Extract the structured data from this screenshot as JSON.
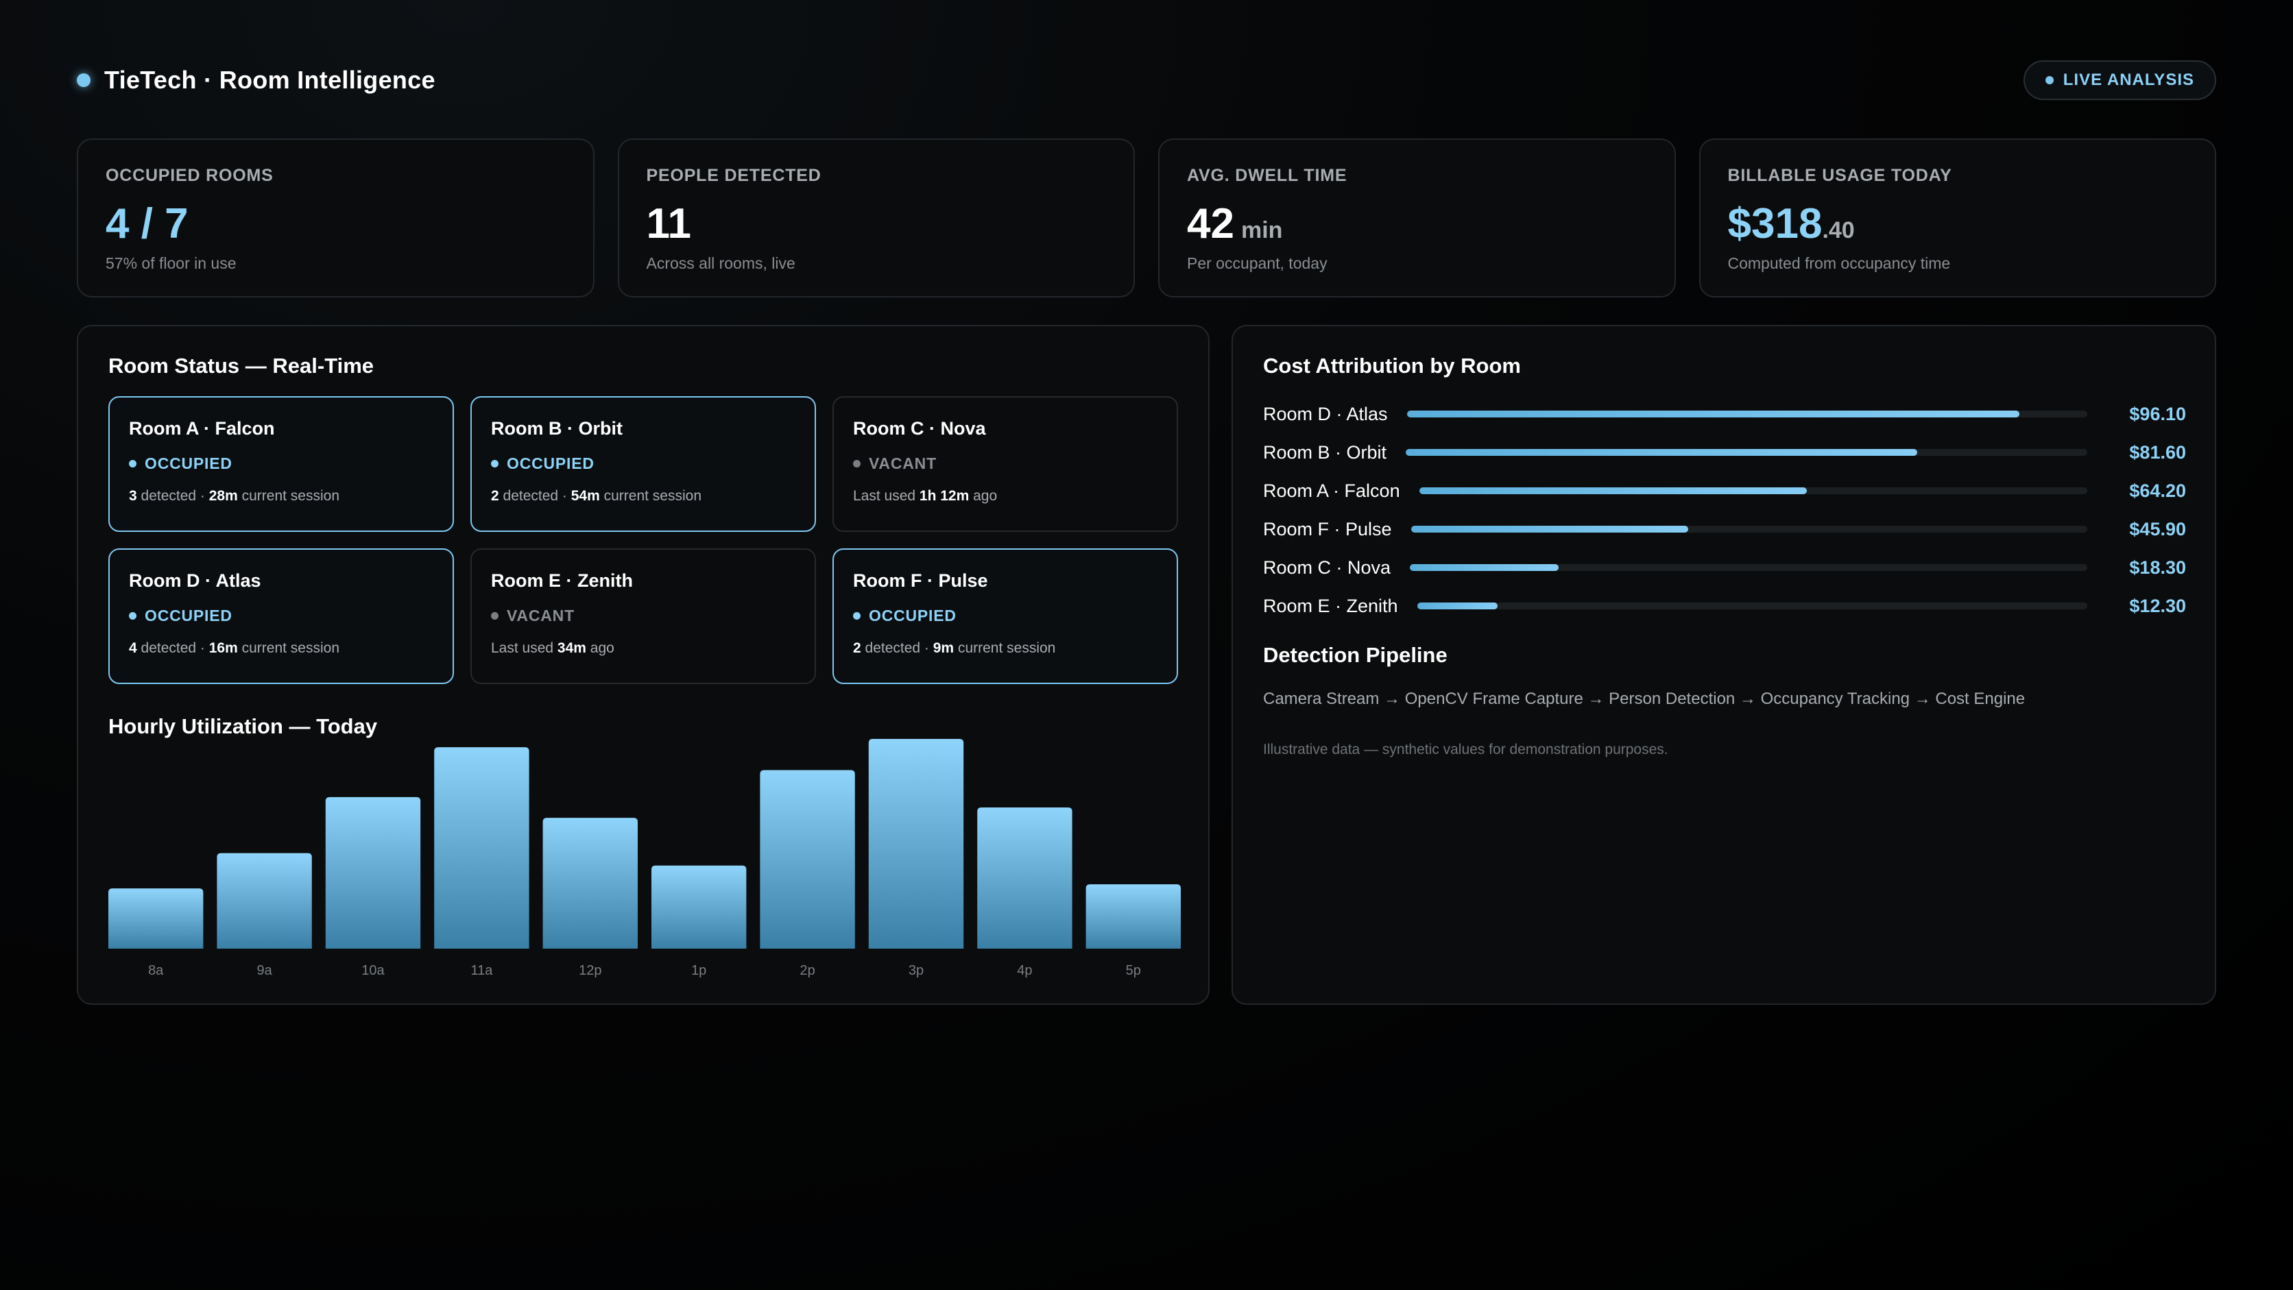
{
  "header": {
    "title": "TieTech · Room Intelligence",
    "live_label": "LIVE ANALYSIS"
  },
  "kpis": [
    {
      "label": "OCCUPIED ROOMS",
      "value": "4 / 7",
      "unit": "",
      "cents": "",
      "sub": "57% of floor in use"
    },
    {
      "label": "PEOPLE DETECTED",
      "value": "11",
      "unit": "",
      "cents": "",
      "sub": "Across all rooms, live"
    },
    {
      "label": "AVG. DWELL TIME",
      "value": "42",
      "unit": "min",
      "cents": "",
      "sub": "Per occupant, today"
    },
    {
      "label": "BILLABLE USAGE TODAY",
      "value": "$318",
      "unit": "",
      "cents": ".40",
      "sub": "Computed from occupancy time"
    }
  ],
  "room_status": {
    "title": "Room Status — Real-Time",
    "rooms": [
      {
        "name": "Room A · Falcon",
        "status": "OCCUPIED",
        "d1": "3",
        "t1": " detected · ",
        "d2": "28m",
        "t2": " current session"
      },
      {
        "name": "Room B · Orbit",
        "status": "OCCUPIED",
        "d1": "2",
        "t1": " detected · ",
        "d2": "54m",
        "t2": " current session"
      },
      {
        "name": "Room C · Nova",
        "status": "VACANT",
        "t0": "Last used ",
        "d1": "1h 12m",
        "t1": " ago"
      },
      {
        "name": "Room D · Atlas",
        "status": "OCCUPIED",
        "d1": "4",
        "t1": " detected · ",
        "d2": "16m",
        "t2": " current session"
      },
      {
        "name": "Room E · Zenith",
        "status": "VACANT",
        "t0": "Last used ",
        "d1": "34m",
        "t1": " ago"
      },
      {
        "name": "Room F · Pulse",
        "status": "OCCUPIED",
        "d1": "2",
        "t1": " detected · ",
        "d2": "9m",
        "t2": " current session"
      }
    ]
  },
  "hourly": {
    "title": "Hourly Utilization — Today"
  },
  "chart_data": {
    "type": "bar",
    "title": "Hourly Utilization — Today",
    "categories": [
      "8a",
      "9a",
      "10a",
      "11a",
      "12p",
      "1p",
      "2p",
      "3p",
      "4p",
      "5p"
    ],
    "values": [
      29,
      46,
      73,
      97,
      63,
      40,
      86,
      101,
      68,
      31
    ],
    "ylim": [
      0,
      101
    ],
    "grid": false,
    "bar_gradient": [
      "#8fd4fa",
      "#3a7fa6"
    ]
  },
  "cost": {
    "title": "Cost Attribution by Room",
    "rows": [
      {
        "name": "Room D · Atlas",
        "value": "$96.10",
        "amount": 96.1
      },
      {
        "name": "Room B · Orbit",
        "value": "$81.60",
        "amount": 81.6
      },
      {
        "name": "Room A · Falcon",
        "value": "$64.20",
        "amount": 64.2
      },
      {
        "name": "Room F · Pulse",
        "value": "$45.90",
        "amount": 45.9
      },
      {
        "name": "Room C · Nova",
        "value": "$18.30",
        "amount": 18.3
      },
      {
        "name": "Room E · Zenith",
        "value": "$12.30",
        "amount": 12.3
      }
    ],
    "fill_fraction": [
      0.9,
      0.75,
      0.58,
      0.41,
      0.22,
      0.12
    ]
  },
  "pipeline": {
    "title": "Detection Pipeline",
    "text": "Camera Stream → OpenCV Frame Capture → Person Detection → Occupancy Tracking → Cost Engine",
    "disclaimer": "Illustrative data — synthetic values for demonstration purposes."
  },
  "colors": {
    "accent": "#8dd2f7",
    "background": "#000000",
    "panel": "#0b0c0d",
    "border": "#23272b",
    "muted": "#a9adb1"
  }
}
